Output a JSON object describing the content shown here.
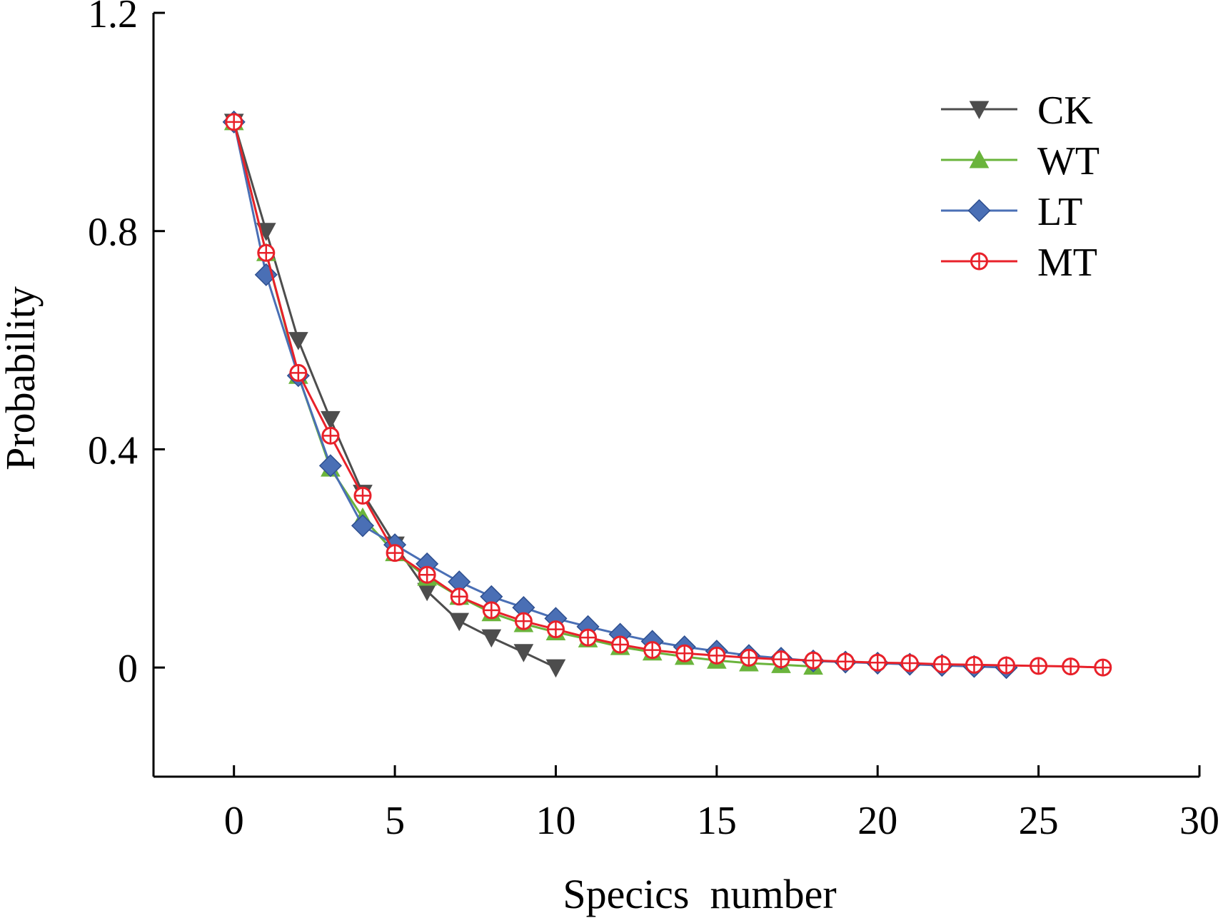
{
  "chart_data": {
    "type": "line",
    "title": "",
    "xlabel": "Specics  number",
    "ylabel": "Probability",
    "xlim": [
      -2.5,
      30
    ],
    "ylim": [
      -0.2,
      1.2
    ],
    "x_ticks": [
      0,
      5,
      10,
      15,
      20,
      25,
      30
    ],
    "y_ticks": [
      0,
      0.4,
      0.8,
      1.2
    ],
    "x_tick_labels": [
      "0",
      "5",
      "10",
      "15",
      "20",
      "25",
      "30"
    ],
    "y_tick_labels": [
      "0",
      "0.4",
      "0.8",
      "1.2"
    ],
    "grid": false,
    "legend_position": "top-right",
    "series": [
      {
        "name": "CK",
        "color": "#4d4d4d",
        "marker": "triangle-down",
        "x": [
          0,
          1,
          2,
          3,
          4,
          5,
          6,
          7,
          8,
          9,
          10
        ],
        "y": [
          1.0,
          0.8,
          0.6,
          0.455,
          0.32,
          0.225,
          0.14,
          0.085,
          0.055,
          0.028,
          0.0
        ]
      },
      {
        "name": "WT",
        "color": "#6ab43c",
        "marker": "triangle-up",
        "x": [
          0,
          1,
          2,
          3,
          4,
          5,
          6,
          7,
          8,
          9,
          10,
          11,
          12,
          13,
          14,
          15,
          16,
          17,
          18
        ],
        "y": [
          1.0,
          0.76,
          0.535,
          0.365,
          0.275,
          0.21,
          0.165,
          0.13,
          0.1,
          0.08,
          0.065,
          0.052,
          0.038,
          0.028,
          0.02,
          0.013,
          0.008,
          0.005,
          0.002
        ]
      },
      {
        "name": "LT",
        "color": "#4a6fb5",
        "marker": "diamond",
        "x": [
          0,
          1,
          2,
          3,
          4,
          5,
          6,
          7,
          8,
          9,
          10,
          11,
          12,
          13,
          14,
          15,
          16,
          17,
          18,
          19,
          20,
          21,
          22,
          23,
          24
        ],
        "y": [
          1.0,
          0.72,
          0.535,
          0.37,
          0.26,
          0.225,
          0.19,
          0.157,
          0.13,
          0.11,
          0.09,
          0.075,
          0.061,
          0.048,
          0.038,
          0.03,
          0.022,
          0.017,
          0.012,
          0.01,
          0.008,
          0.006,
          0.004,
          0.002,
          0.0
        ]
      },
      {
        "name": "MT",
        "color": "#e8212a",
        "marker": "circle-plus",
        "x": [
          0,
          1,
          2,
          3,
          4,
          5,
          6,
          7,
          8,
          9,
          10,
          11,
          12,
          13,
          14,
          15,
          16,
          17,
          18,
          19,
          20,
          21,
          22,
          23,
          24,
          25,
          26,
          27
        ],
        "y": [
          1.0,
          0.76,
          0.54,
          0.425,
          0.315,
          0.21,
          0.17,
          0.13,
          0.105,
          0.085,
          0.07,
          0.055,
          0.042,
          0.032,
          0.026,
          0.022,
          0.018,
          0.015,
          0.013,
          0.011,
          0.009,
          0.008,
          0.006,
          0.005,
          0.004,
          0.003,
          0.002,
          0.0
        ]
      }
    ]
  }
}
